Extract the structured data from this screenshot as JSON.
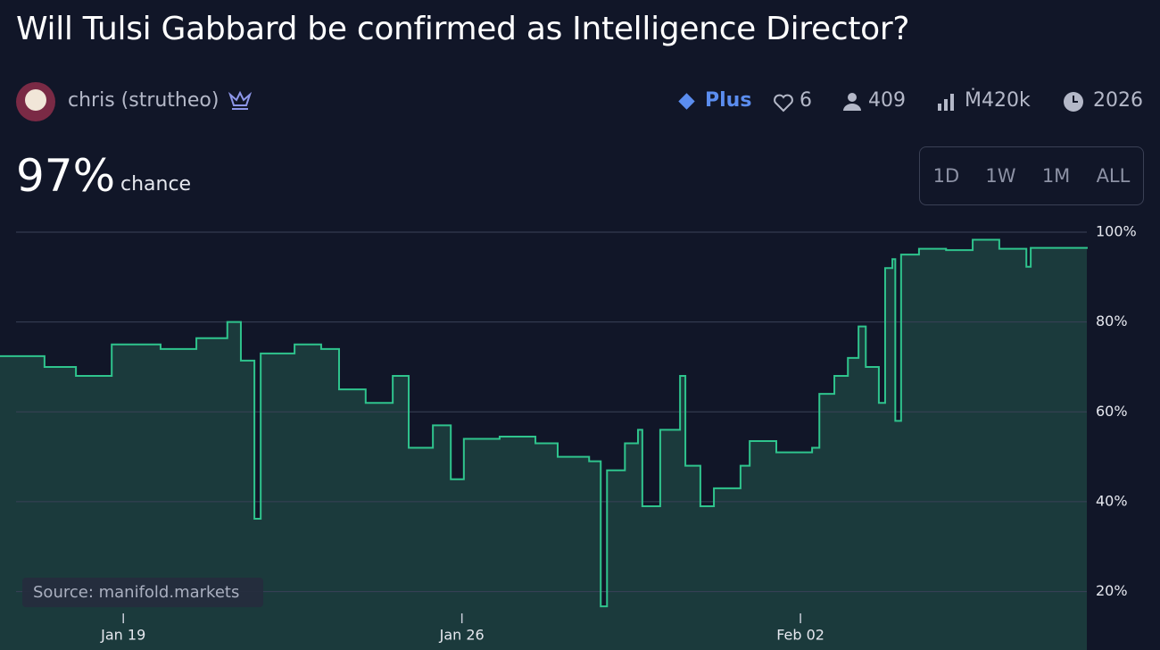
{
  "header": {
    "title": "Will Tulsi Gabbard be confirmed as Intelligence Director?",
    "author": "chris (strutheo)",
    "badge": "Plus",
    "likes": "6",
    "traders": "409",
    "volume": "Ṁ420k",
    "close": "2026"
  },
  "probability": "97%",
  "probability_caption": "chance",
  "range_buttons": [
    "1D",
    "1W",
    "1M",
    "ALL"
  ],
  "source": "Source: manifold.markets",
  "chart_data": {
    "type": "line",
    "color": "#2fc48d",
    "area_color": "#1b3a3c",
    "grid": true,
    "x": [
      16.45,
      17.37,
      18.02,
      18.76,
      19.77,
      20.51,
      21.15,
      21.43,
      21.71,
      21.84,
      22.54,
      23.09,
      23.46,
      24.01,
      24.57,
      24.9,
      25.4,
      25.77,
      26.04,
      26.78,
      27.52,
      27.98,
      28.63,
      28.87,
      29.0,
      29.37,
      29.64,
      29.73,
      30.1,
      30.51,
      30.62,
      30.93,
      31.21,
      31.76,
      31.95,
      32.5,
      33.24,
      33.39,
      33.7,
      33.98,
      34.2,
      34.35,
      34.62,
      34.75,
      34.9,
      34.96,
      35.08,
      35.45,
      36.01,
      36.56,
      37.11,
      37.67,
      37.76,
      38.92
    ],
    "values": [
      72.4,
      70,
      68,
      75,
      74,
      76.4,
      80,
      71.4,
      36.2,
      73,
      75,
      74,
      65,
      62,
      68,
      52,
      57,
      45,
      54,
      54.5,
      53,
      50,
      49,
      16.7,
      47,
      53,
      56,
      39,
      56,
      68,
      48,
      39,
      43,
      48,
      53.5,
      51,
      52,
      64,
      68,
      72,
      79,
      70,
      62,
      92,
      94,
      58,
      95,
      96.3,
      96,
      98.3,
      96.3,
      92.3,
      96.5,
      96.7
    ],
    "xlim": [
      16.45,
      38.92
    ],
    "xticks": [
      {
        "value": 19,
        "label": "Jan 19"
      },
      {
        "value": 26,
        "label": "Jan 26"
      },
      {
        "value": 33,
        "label": "Feb 02"
      }
    ],
    "ylim": [
      7,
      100
    ],
    "yticks": [
      {
        "value": 20,
        "label": "20%"
      },
      {
        "value": 40,
        "label": "40%"
      },
      {
        "value": 60,
        "label": "60%"
      },
      {
        "value": 80,
        "label": "80%"
      },
      {
        "value": 100,
        "label": "100%"
      }
    ]
  }
}
